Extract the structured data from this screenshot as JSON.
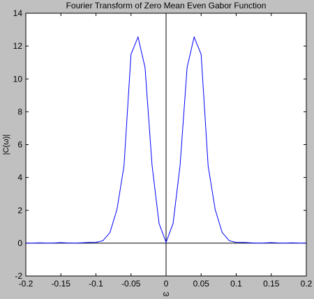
{
  "chart_data": {
    "type": "line",
    "title": "Fourier Transform of Zero Mean Even Gabor Function",
    "xlabel": "ω",
    "ylabel": "|C(ω)|",
    "xlim": [
      -0.2,
      0.2
    ],
    "ylim": [
      -2,
      14
    ],
    "xticks": [
      -0.2,
      -0.15,
      -0.1,
      -0.05,
      0,
      0.05,
      0.1,
      0.15,
      0.2
    ],
    "xtick_labels": [
      "-0.2",
      "-0.15",
      "-0.1",
      "-0.05",
      "0",
      "0.05",
      "0.1",
      "0.15",
      "0.2"
    ],
    "yticks": [
      -2,
      0,
      2,
      4,
      6,
      8,
      10,
      12,
      14
    ],
    "ytick_labels": [
      "-2",
      "0",
      "2",
      "4",
      "6",
      "8",
      "10",
      "12",
      "14"
    ],
    "grid": false,
    "reference_lines": {
      "x": 0,
      "y": 0
    },
    "series": [
      {
        "color": "#0000ff",
        "x": [
          -0.2,
          -0.19,
          -0.18,
          -0.17,
          -0.16,
          -0.15,
          -0.14,
          -0.13,
          -0.12,
          -0.11,
          -0.1,
          -0.09,
          -0.08,
          -0.07,
          -0.06,
          -0.05,
          -0.04,
          -0.03,
          -0.02,
          -0.01,
          0,
          0.01,
          0.02,
          0.03,
          0.04,
          0.05,
          0.06,
          0.07,
          0.08,
          0.09,
          0.1,
          0.11,
          0.12,
          0.13,
          0.14,
          0.15,
          0.16,
          0.17,
          0.18,
          0.19,
          0.2
        ],
        "y": [
          0,
          0,
          0.02,
          0,
          0.01,
          0.03,
          0.01,
          0,
          0.02,
          0.04,
          0.05,
          0.15,
          0.65,
          2.05,
          4.7,
          11.5,
          12.55,
          10.7,
          4.75,
          1.2,
          0.05,
          1.2,
          4.75,
          10.7,
          12.55,
          11.5,
          4.7,
          2.05,
          0.65,
          0.15,
          0.05,
          0.04,
          0.02,
          0,
          0.01,
          0.03,
          0.01,
          0,
          0.02,
          0,
          0
        ]
      }
    ]
  }
}
